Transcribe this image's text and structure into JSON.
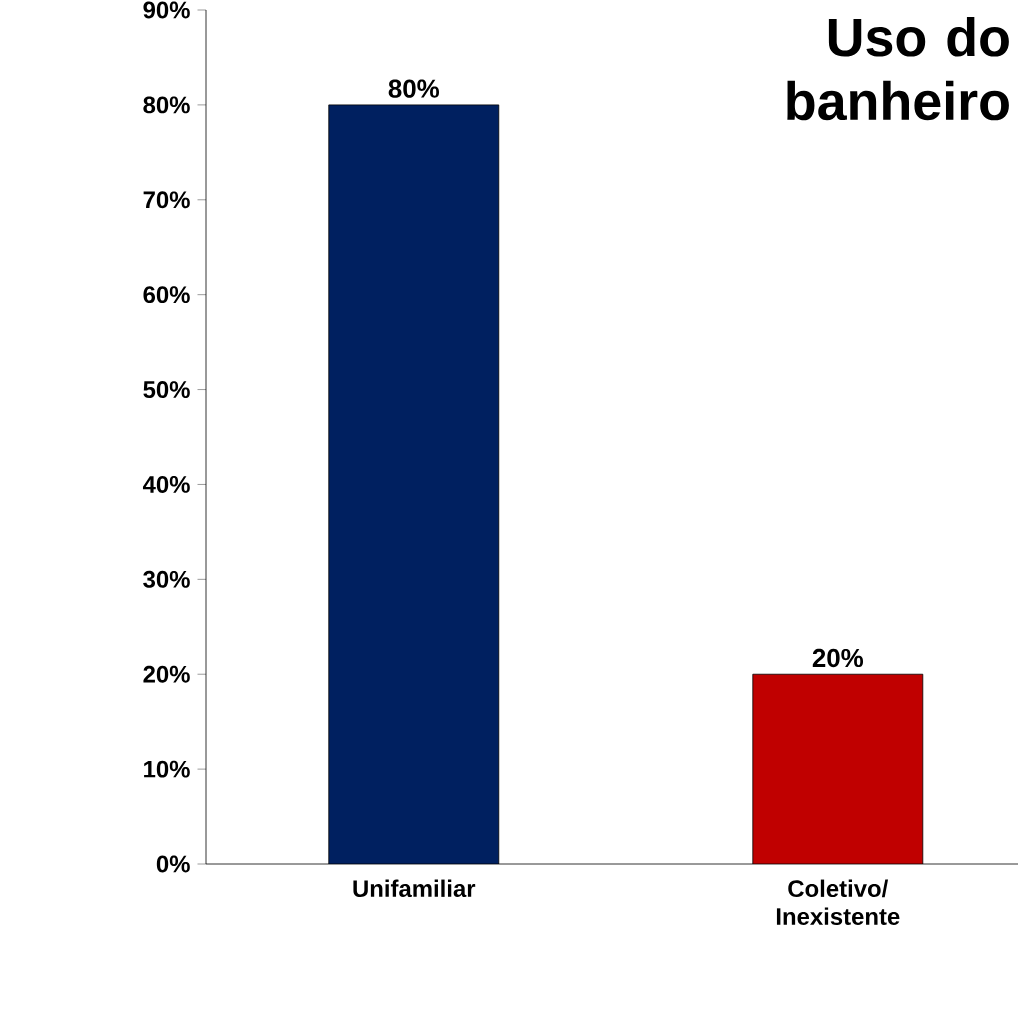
{
  "chart_data": {
    "type": "bar",
    "title": "Uso do banheiro",
    "categories": [
      "Unifamiliar",
      "Coletivo/ Inexistente"
    ],
    "values": [
      80,
      20
    ],
    "colors": [
      "#002060",
      "#c00000"
    ],
    "value_labels": [
      "80%",
      "20%"
    ],
    "ylim": [
      0,
      90
    ],
    "yticks": [
      {
        "value": 0,
        "label": "0%"
      },
      {
        "value": 10,
        "label": "10%"
      },
      {
        "value": 20,
        "label": "20%"
      },
      {
        "value": 30,
        "label": "30%"
      },
      {
        "value": 40,
        "label": "40%"
      },
      {
        "value": 50,
        "label": "50%"
      },
      {
        "value": 60,
        "label": "60%"
      },
      {
        "value": 70,
        "label": "70%"
      },
      {
        "value": 80,
        "label": "80%"
      },
      {
        "value": 90,
        "label": "90%"
      }
    ],
    "grid": false
  }
}
